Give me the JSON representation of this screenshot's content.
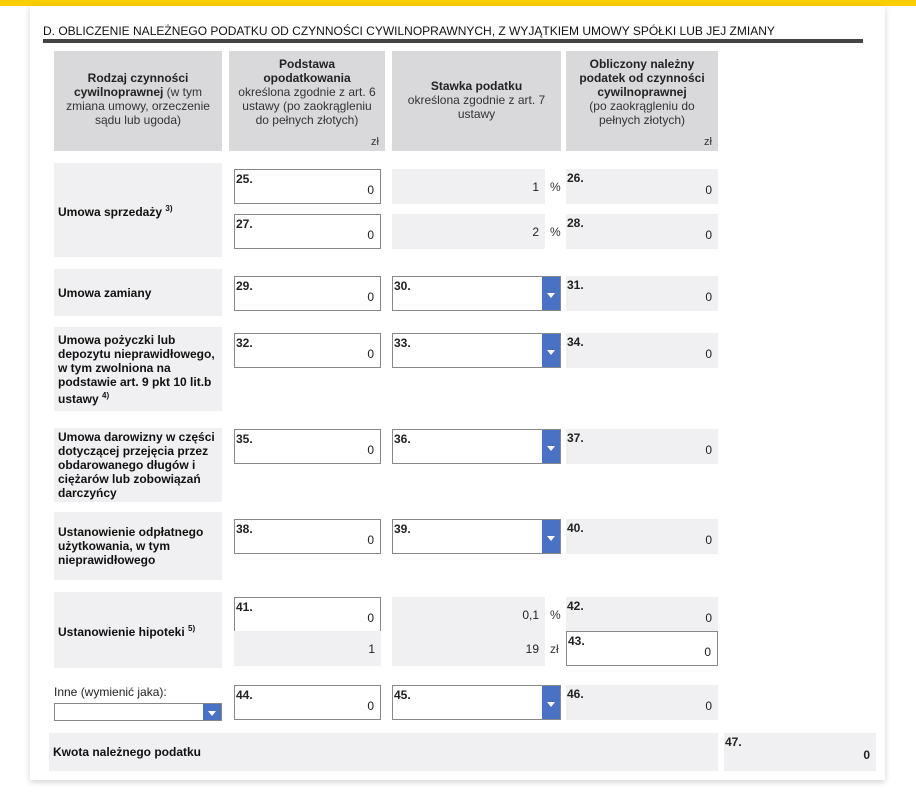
{
  "section_title": "D. OBLICZENIE NALEŻNEGO PODATKU OD CZYNNOŚCI CYWILNOPRAWNYCH, Z WYJĄTKIEM UMOWY SPÓŁKI LUB JEJ ZMIANY",
  "headers": {
    "col1_bold": "Rodzaj czynności cywilnoprawnej",
    "col1_rest": " (w tym zmiana umowy, orzeczenie sądu lub ugoda)",
    "col2_bold": "Podstawa opodatkowania",
    "col2_rest": "określona zgodnie z art. 6 ustawy (po zaokrągleniu do pełnych złotych)",
    "col2_unit": "zł",
    "col3_bold": "Stawka podatku",
    "col3_rest": "określona zgodnie z art. 7 ustawy",
    "col4_bold": "Obliczony należny podatek od czynności cywilnoprawnej",
    "col4_rest": "(po zaokrągleniu do pełnych złotych)",
    "col4_unit": "zł"
  },
  "rows": {
    "sprzedaz": {
      "label": "Umowa sprzedaży",
      "sup": "3)",
      "f25": {
        "num": "25.",
        "value": "0"
      },
      "rate1": "1",
      "unit1": "%",
      "f26": {
        "num": "26.",
        "value": "0"
      },
      "f27": {
        "num": "27.",
        "value": "0"
      },
      "rate2": "2",
      "unit2": "%",
      "f28": {
        "num": "28.",
        "value": "0"
      }
    },
    "zamiany": {
      "label": "Umowa zamiany",
      "f29": {
        "num": "29.",
        "value": "0"
      },
      "f30": {
        "num": "30.",
        "value": ""
      },
      "f31": {
        "num": "31.",
        "value": "0"
      }
    },
    "pozyczki": {
      "label": "Umowa pożyczki lub depozytu nieprawidłowego, w tym zwolniona na podstawie art. 9 pkt 10 lit.b ustawy",
      "sup": "4)",
      "f32": {
        "num": "32.",
        "value": "0"
      },
      "f33": {
        "num": "33.",
        "value": ""
      },
      "f34": {
        "num": "34.",
        "value": "0"
      }
    },
    "darowizny": {
      "label": "Umowa darowizny w części dotyczącej przejęcia przez obdarowanego długów i ciężarów lub zobowiązań darczyńcy",
      "f35": {
        "num": "35.",
        "value": "0"
      },
      "f36": {
        "num": "36.",
        "value": ""
      },
      "f37": {
        "num": "37.",
        "value": "0"
      }
    },
    "uzytkowanie": {
      "label": "Ustanowienie odpłatnego użytkowania, w tym nieprawidłowego",
      "f38": {
        "num": "38.",
        "value": "0"
      },
      "f39": {
        "num": "39.",
        "value": ""
      },
      "f40": {
        "num": "40.",
        "value": "0"
      }
    },
    "hipoteka": {
      "label": "Ustanowienie hipoteki",
      "sup": "5)",
      "f41": {
        "num": "41.",
        "value": "0"
      },
      "rate1": "0,1",
      "unit1": "%",
      "f42": {
        "num": "42.",
        "value": "0"
      },
      "count": "1",
      "rate2": "19",
      "unit2": "zł",
      "f43": {
        "num": "43.",
        "value": "0"
      }
    },
    "inne": {
      "label": "Inne (wymienić jaka):",
      "select_value": "",
      "f44": {
        "num": "44.",
        "value": "0"
      },
      "f45": {
        "num": "45.",
        "value": ""
      },
      "f46": {
        "num": "46.",
        "value": "0"
      }
    }
  },
  "total": {
    "label": "Kwota należnego podatku",
    "f47": {
      "num": "47.",
      "value": "0"
    }
  },
  "colors": {
    "accent_bar": "#ffd000",
    "dropdown": "#4a72c4",
    "header_bg": "#d9d9dc",
    "readonly_bg": "#f0eff1"
  }
}
